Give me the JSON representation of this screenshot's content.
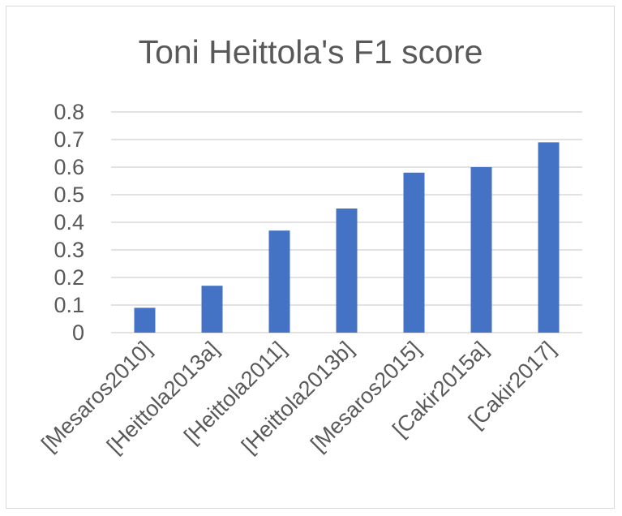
{
  "chart_data": {
    "type": "bar",
    "title": "Toni Heittola's F1 score",
    "xlabel": "",
    "ylabel": "",
    "categories": [
      "[Mesaros2010]",
      "[Heittola2013a]",
      "[Heittola2011]",
      "[Heittola2013b]",
      "[Mesaros2015]",
      "[Cakir2015a]",
      "[Cakir2017]"
    ],
    "values": [
      0.09,
      0.17,
      0.37,
      0.45,
      0.58,
      0.6,
      0.69
    ],
    "ylim": [
      0,
      0.8
    ],
    "yticks": [
      "0",
      "0.1",
      "0.2",
      "0.3",
      "0.4",
      "0.5",
      "0.6",
      "0.7",
      "0.8"
    ],
    "grid": true,
    "legend": "none",
    "bar_color": "#4472c4"
  }
}
